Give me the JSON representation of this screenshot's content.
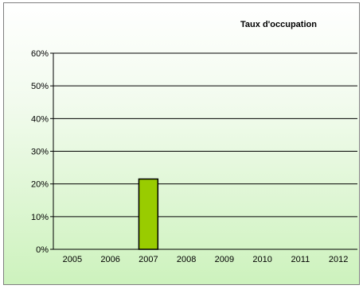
{
  "chart_data": {
    "type": "bar",
    "title": "Taux d'occupation",
    "categories": [
      "2005",
      "2006",
      "2007",
      "2008",
      "2009",
      "2010",
      "2011",
      "2012"
    ],
    "values": [
      0,
      0,
      21.5,
      0,
      0,
      0,
      0,
      0
    ],
    "ylim": [
      0,
      60
    ],
    "yticks": [
      "0%",
      "10%",
      "20%",
      "30%",
      "40%",
      "50%",
      "60%"
    ],
    "grid": true,
    "legend": "none",
    "bar_color": "#99cc00",
    "bar_border_color": "#000000"
  }
}
